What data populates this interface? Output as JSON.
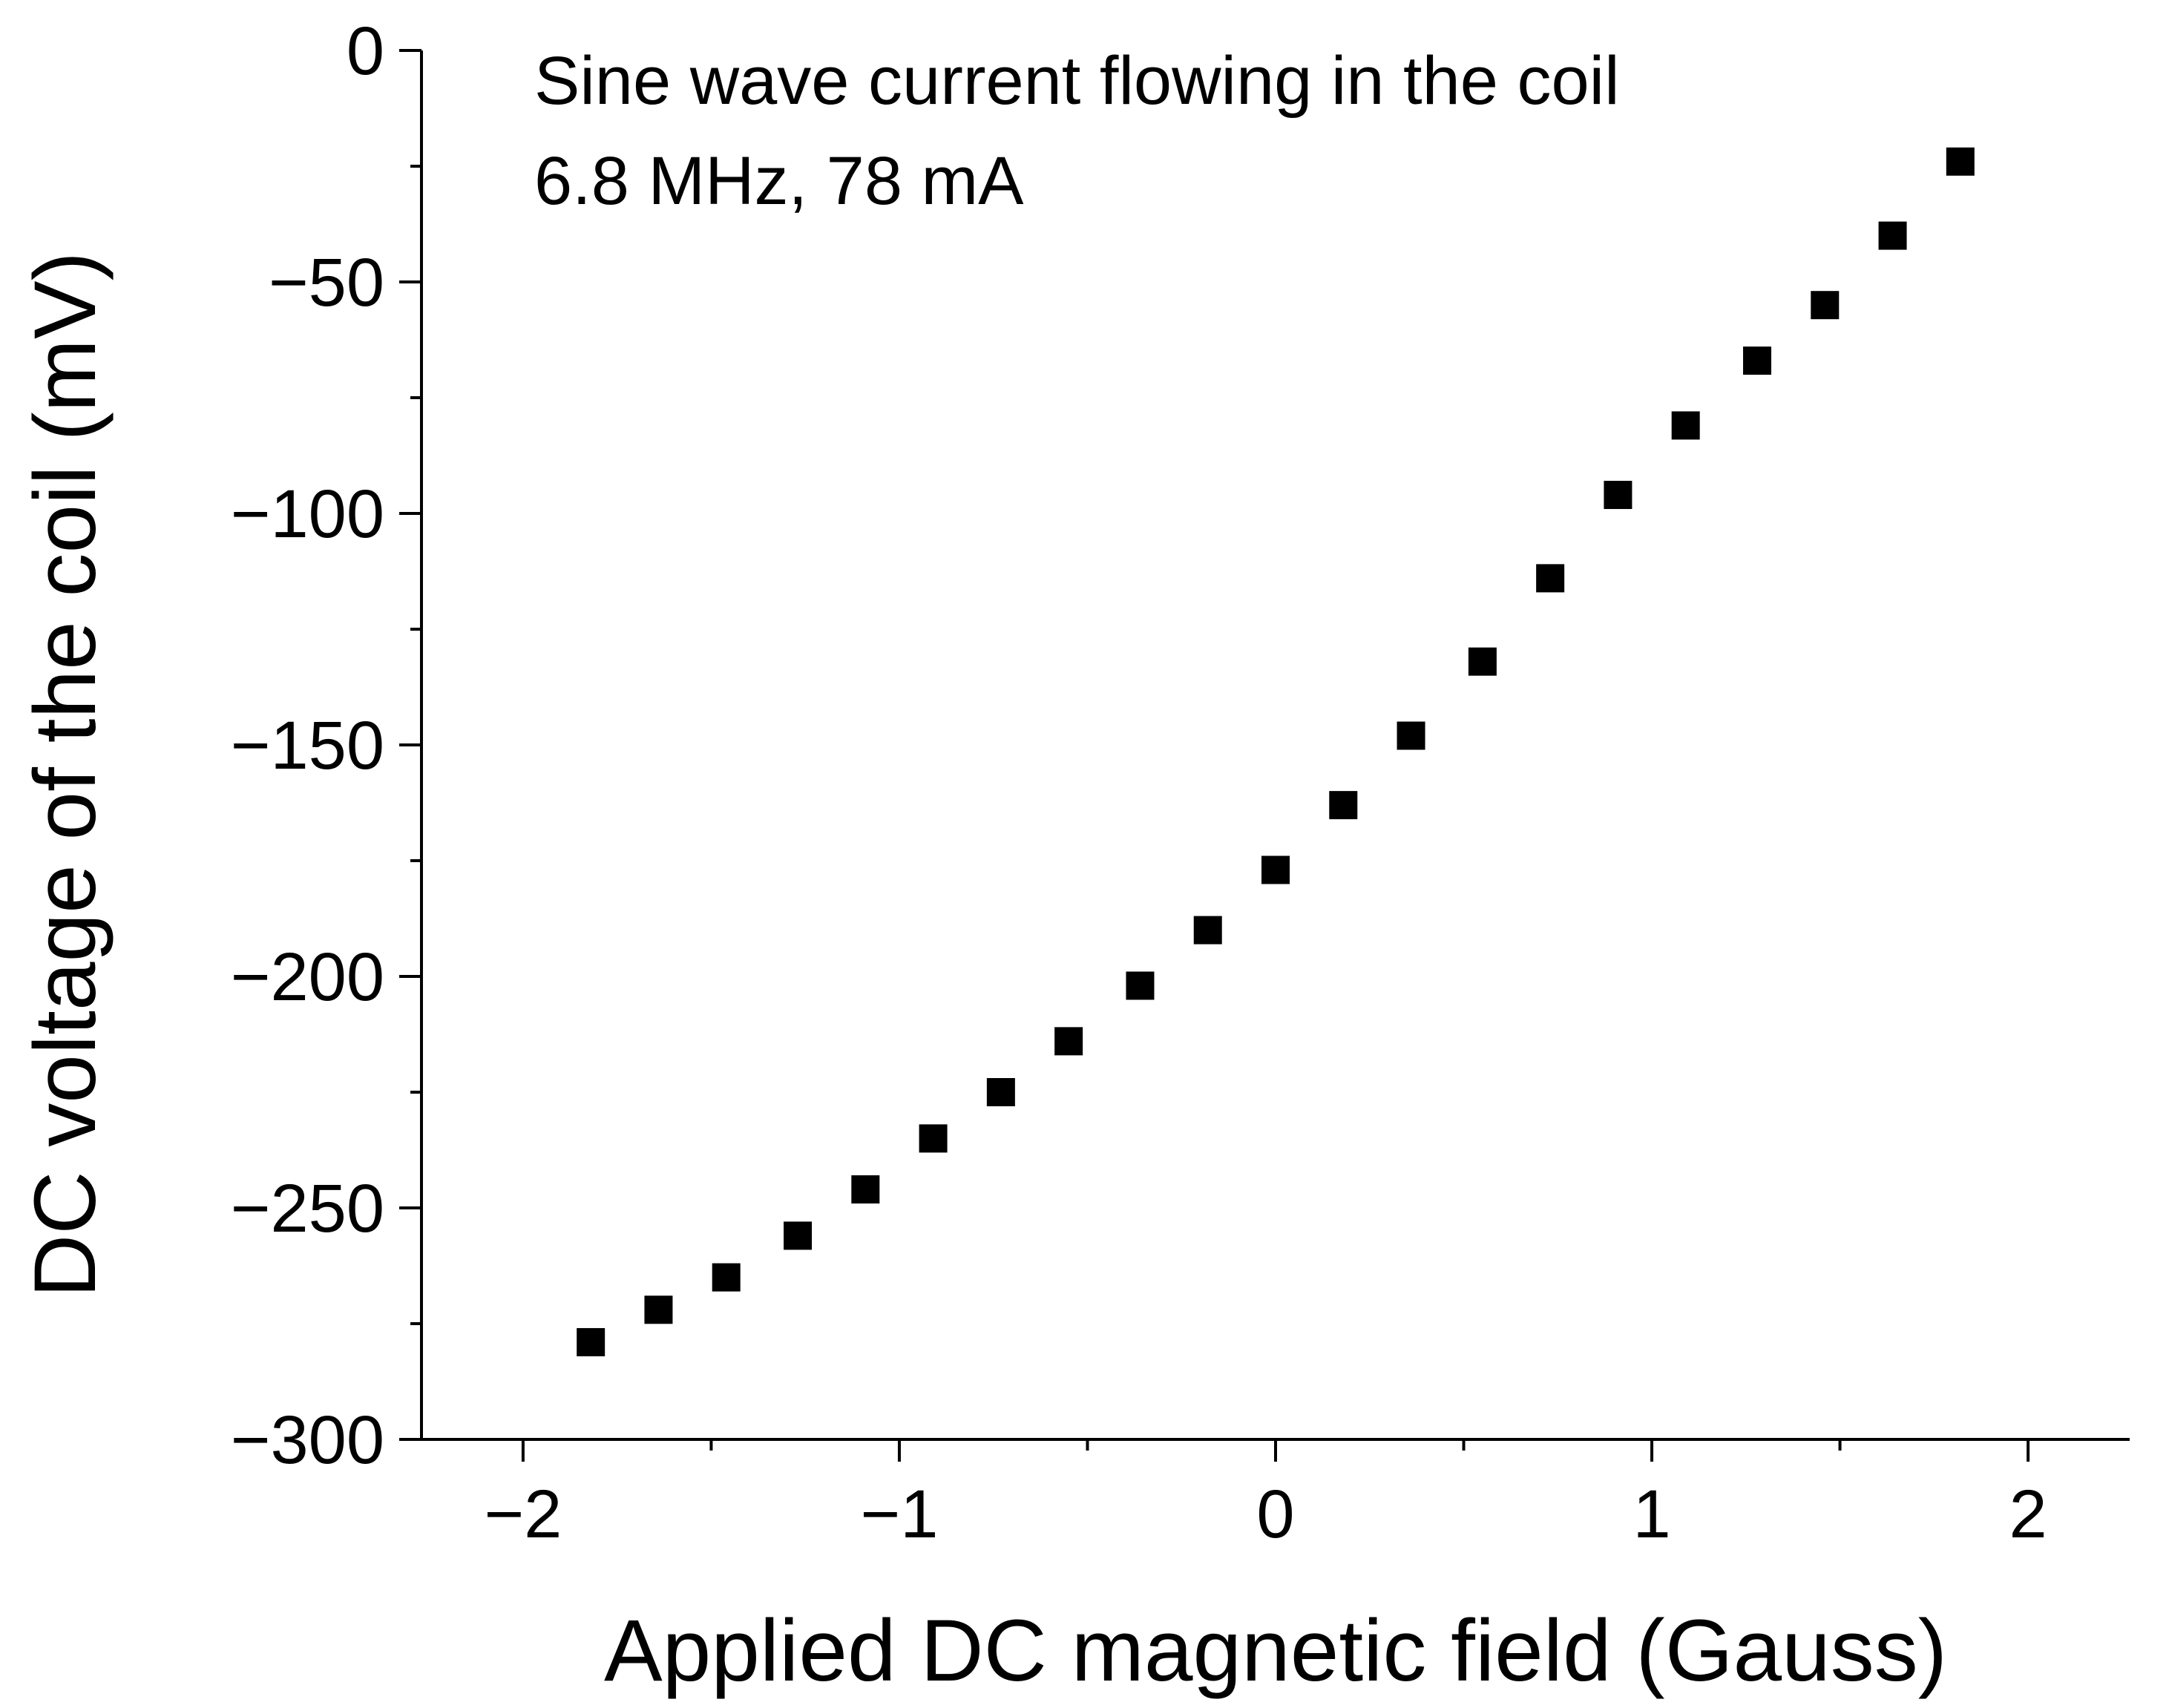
{
  "chart_data": {
    "type": "scatter",
    "title": "",
    "xlabel": "Applied DC magnetic field (Gauss)",
    "ylabel": "DC voltage of the coil (mV)",
    "xlim": [
      -2.27,
      2.27
    ],
    "ylim": [
      -300,
      0
    ],
    "x_ticks": [
      -2,
      -1,
      0,
      1,
      2
    ],
    "x_tick_labels": [
      "−2",
      "−1",
      "0",
      "1",
      "2"
    ],
    "y_ticks": [
      0,
      -50,
      -100,
      -150,
      -200,
      -250,
      -300
    ],
    "y_tick_labels": [
      "0",
      "−50",
      "−100",
      "−150",
      "−200",
      "−250",
      "−300"
    ],
    "annotations": [
      "Sine wave current flowing in the coil",
      "6.8 MHz, 78 mA"
    ],
    "marker": "square",
    "color": "#000000",
    "series": [
      {
        "name": "DC voltage",
        "x": [
          -1.82,
          -1.64,
          -1.46,
          -1.27,
          -1.09,
          -0.91,
          -0.73,
          -0.55,
          -0.36,
          -0.18,
          0.0,
          0.18,
          0.36,
          0.55,
          0.73,
          0.91,
          1.09,
          1.28,
          1.46,
          1.64,
          1.82
        ],
        "y": [
          -279,
          -272,
          -265,
          -256,
          -246,
          -235,
          -225,
          -214,
          -202,
          -190,
          -177,
          -163,
          -148,
          -132,
          -114,
          -96,
          -81,
          -67,
          -55,
          -40,
          -24
        ]
      }
    ]
  }
}
